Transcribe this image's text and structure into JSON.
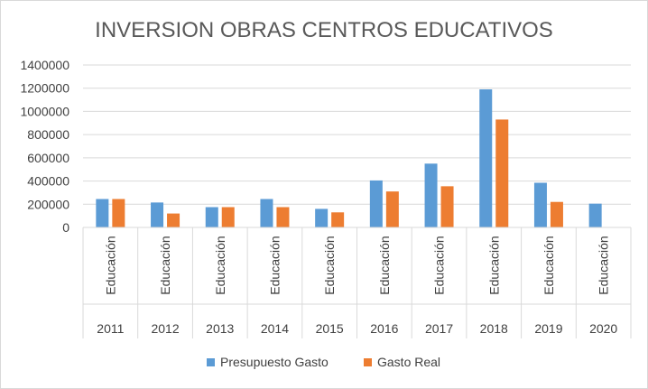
{
  "chart_data": {
    "type": "bar",
    "title": "INVERSION OBRAS CENTROS EDUCATIVOS",
    "xlabel": "",
    "ylabel": "",
    "ylim": [
      0,
      1400000
    ],
    "yticks": [
      "1400000",
      "1200000",
      "1000000",
      "800000",
      "600000",
      "400000",
      "200000",
      "0"
    ],
    "grid": true,
    "legend_position": "bottom",
    "categories": [
      {
        "year": "2011",
        "label": "Educación"
      },
      {
        "year": "2012",
        "label": "Educación"
      },
      {
        "year": "2013",
        "label": "Educación"
      },
      {
        "year": "2014",
        "label": "Educación"
      },
      {
        "year": "2015",
        "label": "Educación"
      },
      {
        "year": "2016",
        "label": "Educación"
      },
      {
        "year": "2017",
        "label": "Educación"
      },
      {
        "year": "2018",
        "label": "Educación"
      },
      {
        "year": "2019",
        "label": "Educación"
      },
      {
        "year": "2020",
        "label": "Educación"
      }
    ],
    "series": [
      {
        "name": "Presupuesto Gasto",
        "color": "#5b9bd5",
        "values": [
          245000,
          215000,
          175000,
          245000,
          160000,
          405000,
          550000,
          1190000,
          385000,
          205000
        ]
      },
      {
        "name": "Gasto Real",
        "color": "#ed7d31",
        "values": [
          245000,
          120000,
          175000,
          175000,
          130000,
          310000,
          355000,
          930000,
          220000,
          0
        ]
      }
    ]
  }
}
